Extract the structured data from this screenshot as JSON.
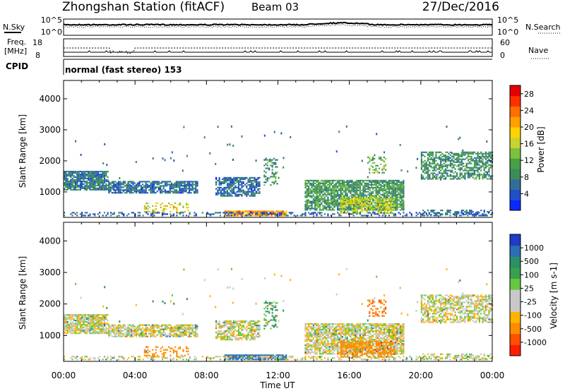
{
  "header": {
    "station": "Zhongshan Station (fitACF)",
    "beam": "Beam 03",
    "date": "27/Dec/2016"
  },
  "noise_panel": {
    "left_label": "N.Sky",
    "right_label": "N.Search",
    "left_ticks": [
      "10^5",
      "10^0"
    ],
    "right_ticks": [
      "10^5",
      "10^0"
    ]
  },
  "freq_panel": {
    "left_label_1": "Freq.",
    "left_label_2": "[MHz]",
    "left_ticks": [
      "18",
      "8"
    ],
    "right_label": "Nave",
    "right_ticks": [
      "60",
      "0"
    ]
  },
  "cpid_panel": {
    "label": "CPID",
    "mode": "normal (fast stereo) 153"
  },
  "chart_data": [
    {
      "type": "heatmap",
      "quantity": "Power",
      "ylabel": "Slant Range [km]",
      "ylim": [
        180,
        4590
      ],
      "yticks": [
        1000,
        2000,
        3000,
        4000
      ],
      "xlim": [
        0,
        24
      ],
      "colorbar": {
        "label": "Power [dB]",
        "ticks": [
          "4",
          "8",
          "12",
          "16",
          "20",
          "24",
          "28"
        ],
        "range": [
          0,
          30
        ],
        "colors": [
          "#0a28ff",
          "#1e50c8",
          "#2f6e9a",
          "#3c8c5a",
          "#46a046",
          "#7cc040",
          "#c8d230",
          "#ffd200",
          "#ffa000",
          "#ff6e00",
          "#ff3000",
          "#e60000"
        ]
      }
    },
    {
      "type": "heatmap",
      "quantity": "Velocity",
      "ylabel": "Slant Range [km]",
      "ylim": [
        180,
        4590
      ],
      "yticks": [
        1000,
        2000,
        3000,
        4000
      ],
      "xlim": [
        0,
        24
      ],
      "colorbar": {
        "label": "Velocity [m s-1]",
        "ticks": [
          "1000",
          "500",
          "100",
          "25",
          "-25",
          "-100",
          "-500",
          "-1000"
        ],
        "colors": [
          "#1e3cc8",
          "#2a6eb4",
          "#2c8f66",
          "#3aa050",
          "#66c840",
          "#c8c8c8",
          "#c8c8c8",
          "#ffb400",
          "#ff8c00",
          "#ff5000",
          "#ff1e00"
        ]
      }
    }
  ],
  "x_axis": {
    "label": "Time UT",
    "ticks": [
      "00:00",
      "04:00",
      "08:00",
      "12:00",
      "16:00",
      "20:00",
      "00:00"
    ]
  }
}
